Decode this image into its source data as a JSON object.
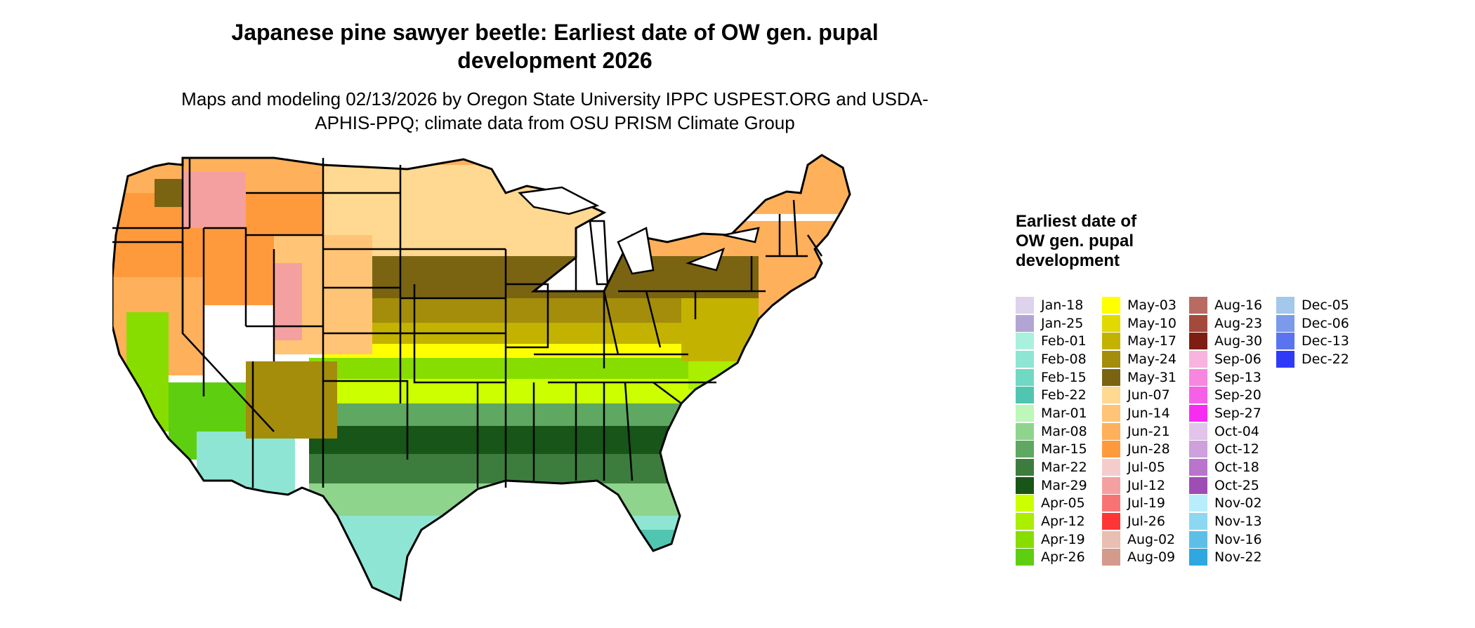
{
  "title": "Japanese pine sawyer beetle: Earliest date of OW gen. pupal development 2026",
  "subtitle": "Maps and modeling 02/13/2026 by Oregon State University IPPC USPEST.ORG and USDA-APHIS-PPQ; climate data from OSU PRISM Climate Group",
  "legend": {
    "title": "Earliest date of OW gen. pupal development",
    "columns": [
      [
        {
          "label": "Jan-18",
          "color": "#ddd3ec"
        },
        {
          "label": "Jan-25",
          "color": "#b3a5d3"
        },
        {
          "label": "Feb-01",
          "color": "#a8f1df"
        },
        {
          "label": "Feb-08",
          "color": "#8fe5d3"
        },
        {
          "label": "Feb-15",
          "color": "#70d9c4"
        },
        {
          "label": "Feb-22",
          "color": "#50c6b0"
        },
        {
          "label": "Mar-01",
          "color": "#bdf7b9"
        },
        {
          "label": "Mar-08",
          "color": "#8fd48d"
        },
        {
          "label": "Mar-15",
          "color": "#5ea861"
        },
        {
          "label": "Mar-22",
          "color": "#3c7d3d"
        },
        {
          "label": "Mar-29",
          "color": "#175518"
        },
        {
          "label": "Apr-05",
          "color": "#ccff00"
        },
        {
          "label": "Apr-12",
          "color": "#aaee00"
        },
        {
          "label": "Apr-19",
          "color": "#88dd00"
        },
        {
          "label": "Apr-26",
          "color": "#5ecf10"
        }
      ],
      [
        {
          "label": "May-03",
          "color": "#ffff00"
        },
        {
          "label": "May-10",
          "color": "#e1d900"
        },
        {
          "label": "May-17",
          "color": "#c3b300"
        },
        {
          "label": "May-24",
          "color": "#a38d0b"
        },
        {
          "label": "May-31",
          "color": "#7a6412"
        },
        {
          "label": "Jun-07",
          "color": "#ffd891"
        },
        {
          "label": "Jun-14",
          "color": "#ffc475"
        },
        {
          "label": "Jun-21",
          "color": "#ffb05a"
        },
        {
          "label": "Jun-28",
          "color": "#ff9a3c"
        },
        {
          "label": "Jul-05",
          "color": "#f5cccc"
        },
        {
          "label": "Jul-12",
          "color": "#f5a0a0"
        },
        {
          "label": "Jul-19",
          "color": "#f87474"
        },
        {
          "label": "Jul-26",
          "color": "#ff3535"
        },
        {
          "label": "Aug-02",
          "color": "#e8bfb2"
        },
        {
          "label": "Aug-09",
          "color": "#d49a8c"
        }
      ],
      [
        {
          "label": "Aug-16",
          "color": "#b86b60"
        },
        {
          "label": "Aug-23",
          "color": "#a34a3c"
        },
        {
          "label": "Aug-30",
          "color": "#7e1e12"
        },
        {
          "label": "Sep-06",
          "color": "#f9b3df"
        },
        {
          "label": "Sep-13",
          "color": "#f786df"
        },
        {
          "label": "Sep-20",
          "color": "#f560e6"
        },
        {
          "label": "Sep-27",
          "color": "#f72cf2"
        },
        {
          "label": "Oct-04",
          "color": "#e2c3ea"
        },
        {
          "label": "Oct-12",
          "color": "#cea0dc"
        },
        {
          "label": "Oct-18",
          "color": "#b974cb"
        },
        {
          "label": "Oct-25",
          "color": "#9f4db5"
        },
        {
          "label": "Nov-02",
          "color": "#b8eefc"
        },
        {
          "label": "Nov-13",
          "color": "#8cd8f0"
        },
        {
          "label": "Nov-16",
          "color": "#5dbfe8"
        },
        {
          "label": "Nov-22",
          "color": "#2ea8df"
        }
      ],
      [
        {
          "label": "Dec-05",
          "color": "#a3c8ea"
        },
        {
          "label": "Dec-06",
          "color": "#7b9aea"
        },
        {
          "label": "Dec-13",
          "color": "#5a74ef"
        },
        {
          "label": "Dec-22",
          "color": "#2f3af9"
        }
      ]
    ]
  }
}
